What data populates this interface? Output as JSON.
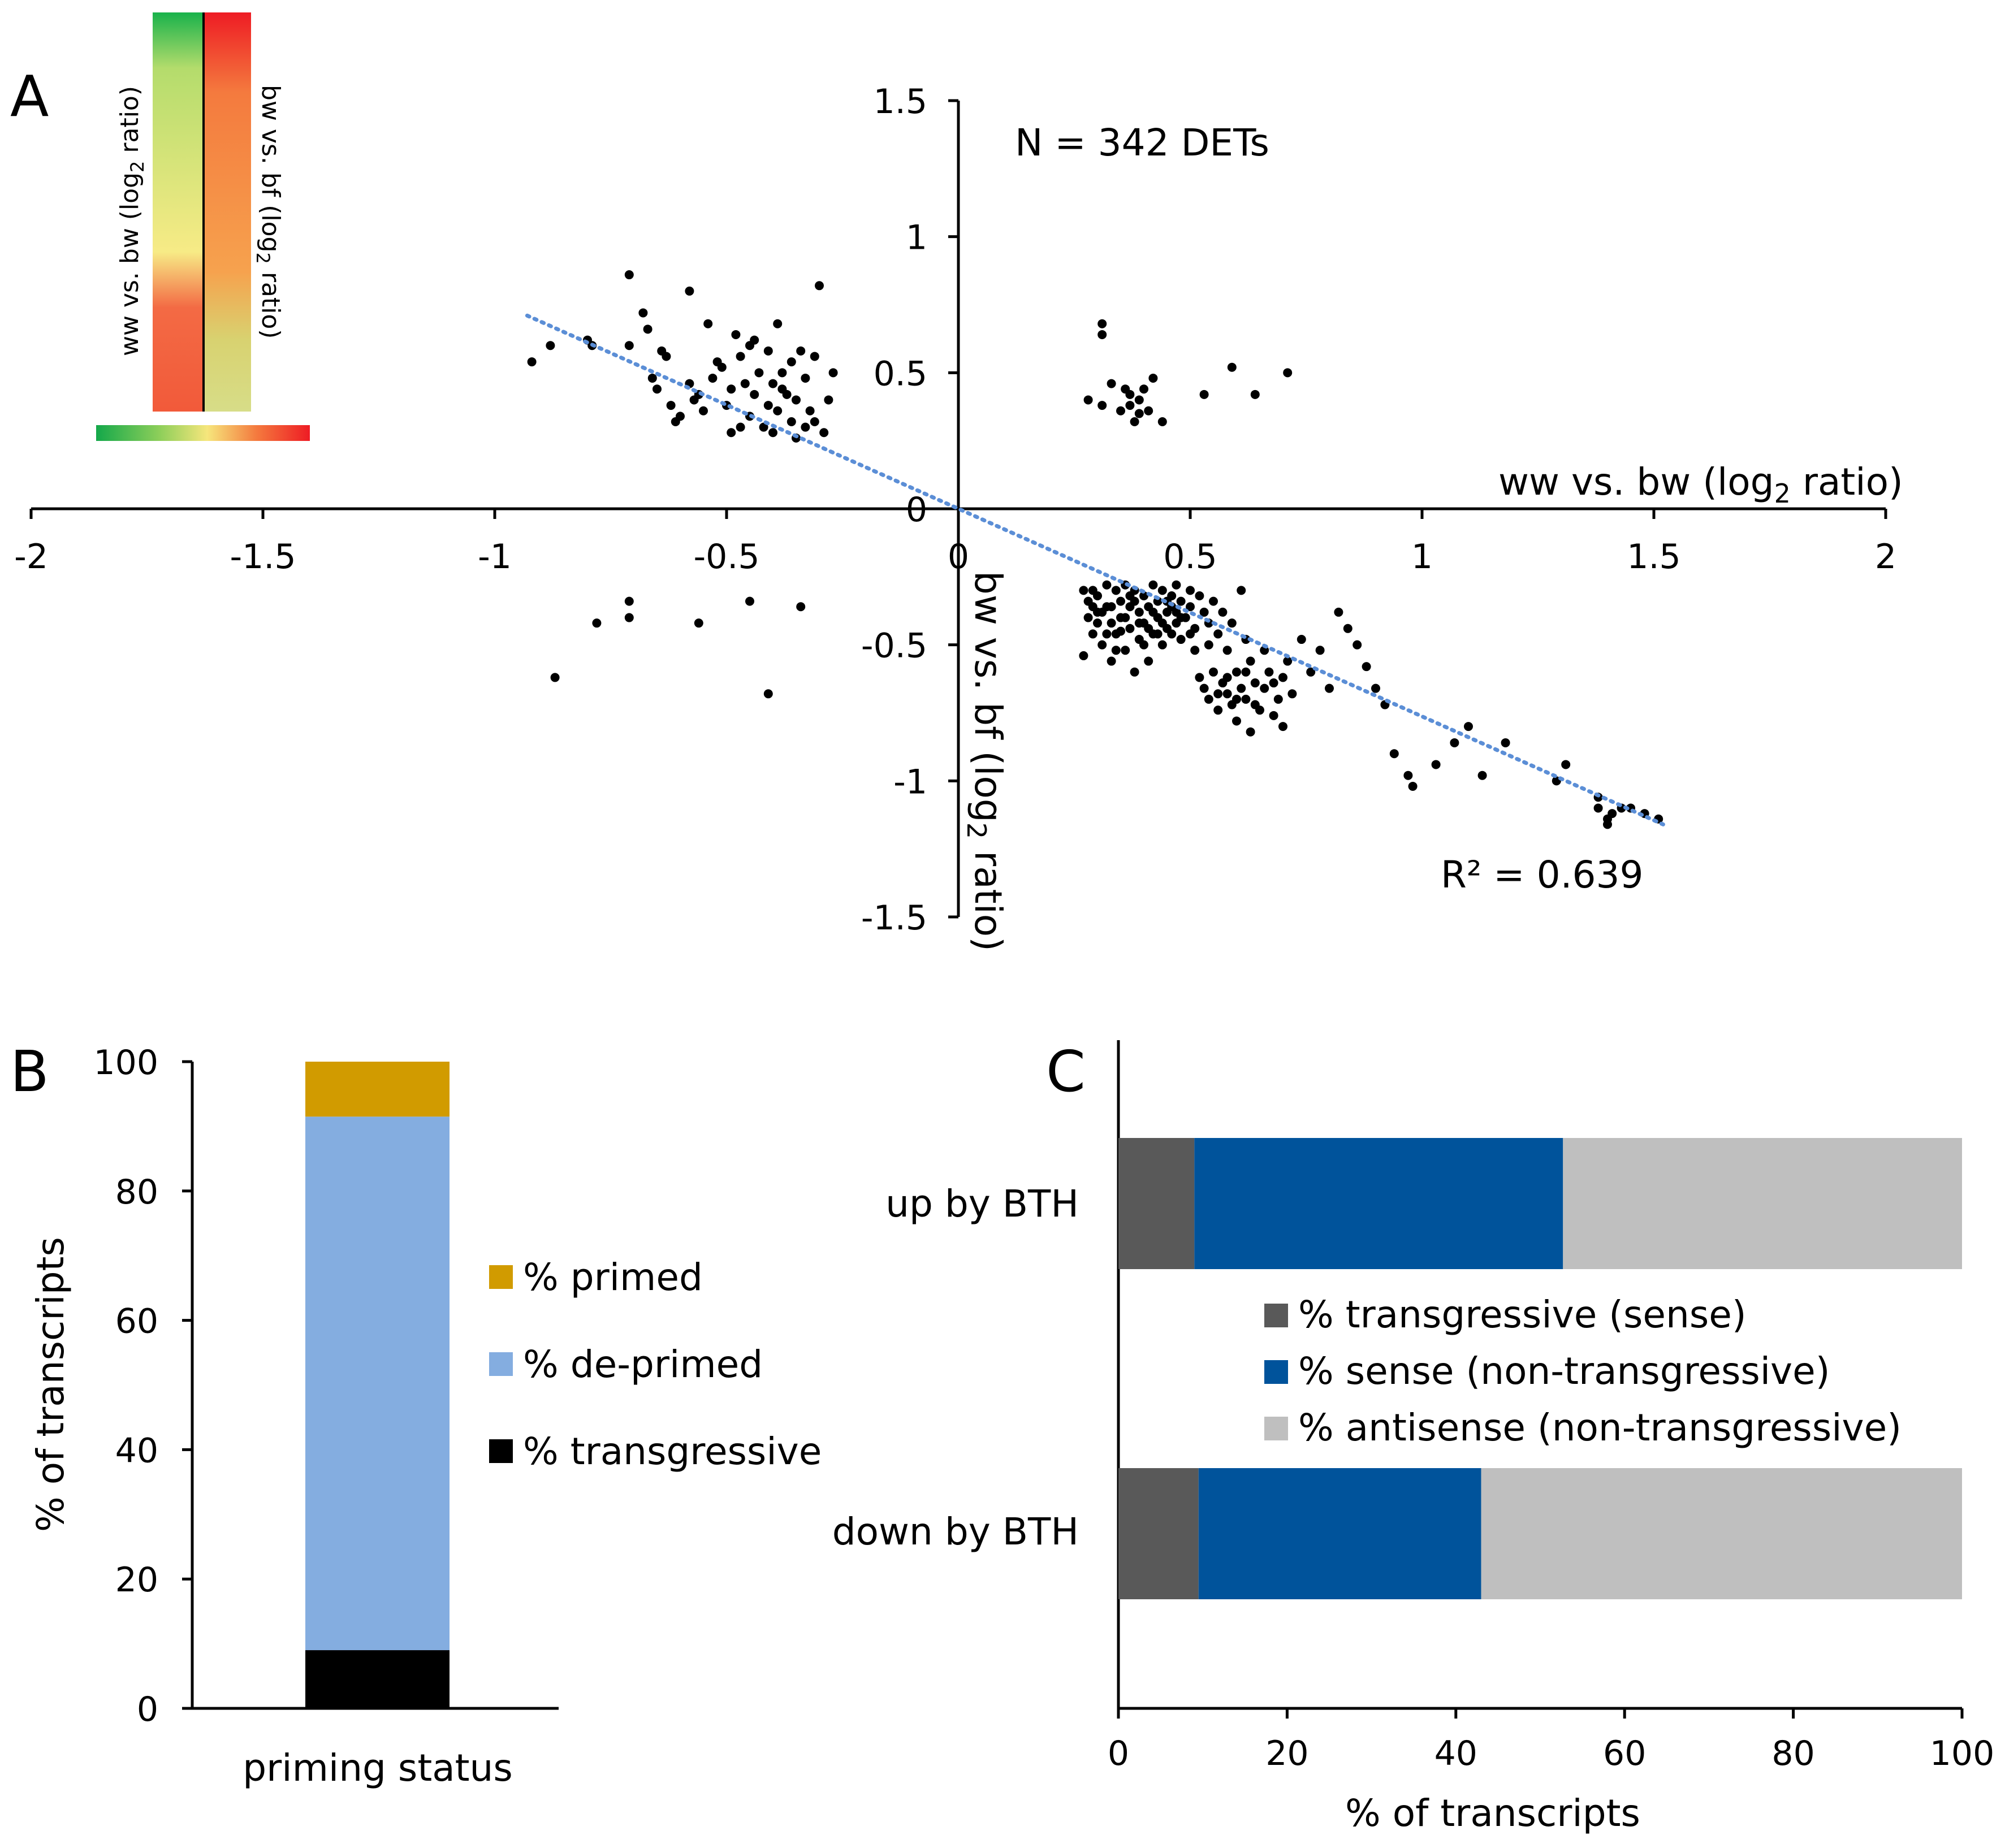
{
  "chart_data": [
    {
      "panel": "A",
      "type": "scatter",
      "panel_label": "A",
      "annotation_n": "N = 342 DETs",
      "annotation_r2": "R² = 0.639",
      "xlabel_pre": "ww vs. bw (log",
      "xlabel_sub": "2",
      "xlabel_post": " ratio)",
      "ylabel_pre": "bw vs. bf (log",
      "ylabel_sub": "2",
      "ylabel_post": " ratio)",
      "xlim": [
        -2,
        2
      ],
      "ylim": [
        -1.5,
        1.5
      ],
      "x_ticks": [
        {
          "v": -2,
          "label": "-2"
        },
        {
          "v": -1.5,
          "label": "-1.5"
        },
        {
          "v": -1,
          "label": "-1"
        },
        {
          "v": -0.5,
          "label": "-0.5"
        },
        {
          "v": 0,
          "label": "0"
        },
        {
          "v": 0.5,
          "label": "0.5"
        },
        {
          "v": 1,
          "label": "1"
        },
        {
          "v": 1.5,
          "label": "1.5"
        },
        {
          "v": 2,
          "label": "2"
        }
      ],
      "y_ticks": [
        {
          "v": 1.5,
          "label": "1.5"
        },
        {
          "v": 1,
          "label": "1"
        },
        {
          "v": 0.5,
          "label": "0.5"
        },
        {
          "v": 0,
          "label": "0"
        },
        {
          "v": -0.5,
          "label": "-0.5"
        },
        {
          "v": -1,
          "label": "-1"
        },
        {
          "v": -1.5,
          "label": "-1.5"
        }
      ],
      "trendline": {
        "x": [
          -0.93,
          1.52
        ],
        "y": [
          0.71,
          -1.16
        ],
        "color": "#5b8ed6"
      },
      "point_color": "#000000",
      "colorbar": {
        "left_label_pre": "ww vs. bw (log",
        "left_label_sub": "2",
        "left_label_post": " ratio)",
        "right_label_pre": "bw vs. bf (log",
        "right_label_sub": "2",
        "right_label_post": " ratio)",
        "colors": [
          "#19b24b",
          "#c3df6a",
          "#f6e884",
          "#f25a3a",
          "#ee1c24"
        ]
      },
      "points": [
        [
          -0.92,
          0.54
        ],
        [
          -0.88,
          0.6
        ],
        [
          -0.8,
          0.62
        ],
        [
          -0.79,
          0.6
        ],
        [
          -0.71,
          0.86
        ],
        [
          -0.71,
          0.6
        ],
        [
          -0.68,
          0.72
        ],
        [
          -0.67,
          0.66
        ],
        [
          -0.66,
          0.48
        ],
        [
          -0.65,
          0.44
        ],
        [
          -0.64,
          0.58
        ],
        [
          -0.63,
          0.56
        ],
        [
          -0.62,
          0.38
        ],
        [
          -0.6,
          0.34
        ],
        [
          -0.58,
          0.46
        ],
        [
          -0.58,
          0.8
        ],
        [
          -0.56,
          0.42
        ],
        [
          -0.55,
          0.36
        ],
        [
          -0.54,
          0.68
        ],
        [
          -0.53,
          0.48
        ],
        [
          -0.51,
          0.52
        ],
        [
          -0.5,
          0.38
        ],
        [
          -0.49,
          0.44
        ],
        [
          -0.49,
          0.28
        ],
        [
          -0.48,
          0.64
        ],
        [
          -0.47,
          0.56
        ],
        [
          -0.46,
          0.46
        ],
        [
          -0.45,
          0.34
        ],
        [
          -0.45,
          0.6
        ],
        [
          -0.44,
          0.42
        ],
        [
          -0.43,
          0.5
        ],
        [
          -0.42,
          0.3
        ],
        [
          -0.41,
          0.38
        ],
        [
          -0.41,
          0.58
        ],
        [
          -0.4,
          0.46
        ],
        [
          -0.39,
          0.36
        ],
        [
          -0.39,
          0.68
        ],
        [
          -0.38,
          0.5
        ],
        [
          -0.37,
          0.42
        ],
        [
          -0.36,
          0.32
        ],
        [
          -0.36,
          0.54
        ],
        [
          -0.35,
          0.4
        ],
        [
          -0.34,
          0.58
        ],
        [
          -0.33,
          0.3
        ],
        [
          -0.33,
          0.48
        ],
        [
          -0.32,
          0.36
        ],
        [
          -0.31,
          0.56
        ],
        [
          -0.3,
          0.82
        ],
        [
          -0.29,
          0.28
        ],
        [
          -0.28,
          0.4
        ],
        [
          -0.27,
          0.5
        ],
        [
          -0.44,
          0.62
        ],
        [
          -0.52,
          0.54
        ],
        [
          -0.57,
          0.4
        ],
        [
          -0.61,
          0.32
        ],
        [
          -0.4,
          0.28
        ],
        [
          -0.35,
          0.26
        ],
        [
          -0.47,
          0.3
        ],
        [
          -0.38,
          0.44
        ],
        [
          -0.31,
          0.32
        ],
        [
          -0.87,
          -0.62
        ],
        [
          -0.78,
          -0.42
        ],
        [
          -0.71,
          -0.34
        ],
        [
          -0.71,
          -0.4
        ],
        [
          -0.56,
          -0.42
        ],
        [
          -0.45,
          -0.34
        ],
        [
          -0.41,
          -0.68
        ],
        [
          -0.34,
          -0.36
        ],
        [
          0.31,
          0.68
        ],
        [
          0.31,
          0.64
        ],
        [
          0.33,
          0.46
        ],
        [
          0.28,
          0.4
        ],
        [
          0.35,
          0.36
        ],
        [
          0.36,
          0.44
        ],
        [
          0.37,
          0.42
        ],
        [
          0.38,
          0.32
        ],
        [
          0.39,
          0.4
        ],
        [
          0.4,
          0.44
        ],
        [
          0.41,
          0.36
        ],
        [
          0.42,
          0.48
        ],
        [
          0.44,
          0.32
        ],
        [
          0.53,
          0.42
        ],
        [
          0.59,
          0.52
        ],
        [
          0.64,
          0.42
        ],
        [
          0.71,
          0.5
        ],
        [
          0.31,
          0.38
        ],
        [
          0.37,
          0.38
        ],
        [
          0.39,
          0.35
        ],
        [
          0.27,
          -0.3
        ],
        [
          0.27,
          -0.54
        ],
        [
          0.28,
          -0.34
        ],
        [
          0.28,
          -0.4
        ],
        [
          0.29,
          -0.3
        ],
        [
          0.29,
          -0.46
        ],
        [
          0.3,
          -0.32
        ],
        [
          0.3,
          -0.38
        ],
        [
          0.31,
          -0.5
        ],
        [
          0.32,
          -0.28
        ],
        [
          0.32,
          -0.36
        ],
        [
          0.33,
          -0.42
        ],
        [
          0.33,
          -0.56
        ],
        [
          0.34,
          -0.3
        ],
        [
          0.34,
          -0.46
        ],
        [
          0.35,
          -0.34
        ],
        [
          0.35,
          -0.4
        ],
        [
          0.36,
          -0.52
        ],
        [
          0.36,
          -0.28
        ],
        [
          0.37,
          -0.36
        ],
        [
          0.37,
          -0.44
        ],
        [
          0.38,
          -0.3
        ],
        [
          0.38,
          -0.6
        ],
        [
          0.39,
          -0.38
        ],
        [
          0.39,
          -0.48
        ],
        [
          0.4,
          -0.32
        ],
        [
          0.4,
          -0.42
        ],
        [
          0.41,
          -0.36
        ],
        [
          0.41,
          -0.56
        ],
        [
          0.42,
          -0.28
        ],
        [
          0.42,
          -0.46
        ],
        [
          0.43,
          -0.34
        ],
        [
          0.43,
          -0.4
        ],
        [
          0.44,
          -0.3
        ],
        [
          0.44,
          -0.5
        ],
        [
          0.45,
          -0.38
        ],
        [
          0.45,
          -0.44
        ],
        [
          0.46,
          -0.32
        ],
        [
          0.46,
          -0.36
        ],
        [
          0.47,
          -0.42
        ],
        [
          0.47,
          -0.28
        ],
        [
          0.48,
          -0.34
        ],
        [
          0.48,
          -0.48
        ],
        [
          0.49,
          -0.4
        ],
        [
          0.5,
          -0.3
        ],
        [
          0.5,
          -0.36
        ],
        [
          0.51,
          -0.44
        ],
        [
          0.51,
          -0.52
        ],
        [
          0.52,
          -0.32
        ],
        [
          0.52,
          -0.62
        ],
        [
          0.53,
          -0.38
        ],
        [
          0.53,
          -0.66
        ],
        [
          0.54,
          -0.42
        ],
        [
          0.54,
          -0.7
        ],
        [
          0.55,
          -0.34
        ],
        [
          0.55,
          -0.6
        ],
        [
          0.56,
          -0.46
        ],
        [
          0.56,
          -0.74
        ],
        [
          0.57,
          -0.64
        ],
        [
          0.57,
          -0.38
        ],
        [
          0.58,
          -0.68
        ],
        [
          0.58,
          -0.52
        ],
        [
          0.59,
          -0.72
        ],
        [
          0.59,
          -0.42
        ],
        [
          0.6,
          -0.6
        ],
        [
          0.6,
          -0.78
        ],
        [
          0.61,
          -0.3
        ],
        [
          0.61,
          -0.66
        ],
        [
          0.62,
          -0.48
        ],
        [
          0.62,
          -0.7
        ],
        [
          0.63,
          -0.56
        ],
        [
          0.63,
          -0.82
        ],
        [
          0.64,
          -0.64
        ],
        [
          0.65,
          -0.74
        ],
        [
          0.66,
          -0.52
        ],
        [
          0.66,
          -0.66
        ],
        [
          0.67,
          -0.6
        ],
        [
          0.68,
          -0.76
        ],
        [
          0.69,
          -0.7
        ],
        [
          0.7,
          -0.62
        ],
        [
          0.7,
          -0.8
        ],
        [
          0.71,
          -0.56
        ],
        [
          0.72,
          -0.68
        ],
        [
          0.74,
          -0.48
        ],
        [
          0.76,
          -0.6
        ],
        [
          0.78,
          -0.52
        ],
        [
          0.8,
          -0.66
        ],
        [
          0.82,
          -0.38
        ],
        [
          0.84,
          -0.44
        ],
        [
          0.86,
          -0.5
        ],
        [
          0.88,
          -0.58
        ],
        [
          0.9,
          -0.66
        ],
        [
          0.92,
          -0.72
        ],
        [
          0.94,
          -0.9
        ],
        [
          0.97,
          -0.98
        ],
        [
          0.98,
          -1.02
        ],
        [
          1.03,
          -0.94
        ],
        [
          1.07,
          -0.86
        ],
        [
          1.1,
          -0.8
        ],
        [
          1.13,
          -0.98
        ],
        [
          1.18,
          -0.86
        ],
        [
          1.31,
          -0.94
        ],
        [
          1.29,
          -1.0
        ],
        [
          1.38,
          -1.06
        ],
        [
          1.38,
          -1.1
        ],
        [
          1.4,
          -1.14
        ],
        [
          1.41,
          -1.12
        ],
        [
          1.43,
          -1.1
        ],
        [
          1.45,
          -1.1
        ],
        [
          1.48,
          -1.12
        ],
        [
          1.51,
          -1.14
        ],
        [
          1.4,
          -1.16
        ],
        [
          0.3,
          -0.42
        ],
        [
          0.34,
          -0.52
        ],
        [
          0.36,
          -0.4
        ],
        [
          0.4,
          -0.5
        ],
        [
          0.44,
          -0.42
        ],
        [
          0.48,
          -0.4
        ],
        [
          0.32,
          -0.46
        ],
        [
          0.38,
          -0.34
        ],
        [
          0.42,
          -0.38
        ],
        [
          0.46,
          -0.46
        ],
        [
          0.5,
          -0.46
        ],
        [
          0.54,
          -0.5
        ],
        [
          0.58,
          -0.62
        ],
        [
          0.62,
          -0.6
        ],
        [
          0.64,
          -0.72
        ],
        [
          0.68,
          -0.64
        ],
        [
          0.6,
          -0.7
        ],
        [
          0.56,
          -0.68
        ],
        [
          0.35,
          -0.45
        ],
        [
          0.31,
          -0.38
        ],
        [
          0.43,
          -0.46
        ],
        [
          0.47,
          -0.38
        ],
        [
          0.39,
          -0.42
        ],
        [
          0.33,
          -0.36
        ],
        [
          0.37,
          -0.32
        ],
        [
          0.41,
          -0.44
        ],
        [
          0.45,
          -0.34
        ],
        [
          0.29,
          -0.36
        ]
      ]
    },
    {
      "panel": "B",
      "type": "bar",
      "stacked": true,
      "panel_label": "B",
      "categories": [
        "priming status"
      ],
      "ylabel": "% of transcripts",
      "ylim": [
        0,
        100
      ],
      "y_ticks": [
        {
          "v": 100,
          "label": "100"
        },
        {
          "v": 80,
          "label": "80"
        },
        {
          "v": 60,
          "label": "60"
        },
        {
          "v": 40,
          "label": "40"
        },
        {
          "v": 20,
          "label": "20"
        },
        {
          "v": 0,
          "label": "0"
        }
      ],
      "series": [
        {
          "name": "% transgressive",
          "values": [
            9
          ],
          "color": "#000000"
        },
        {
          "name": "% de-primed",
          "values": [
            82.5
          ],
          "color": "#84ade0"
        },
        {
          "name": "% primed",
          "values": [
            8.5
          ],
          "color": "#d19b00"
        }
      ],
      "legend_order": [
        "% primed",
        "% de-primed",
        "% transgressive"
      ]
    },
    {
      "panel": "C",
      "type": "bar",
      "orientation": "horizontal",
      "stacked": true,
      "panel_label": "C",
      "categories": [
        "up by BTH",
        "down by BTH"
      ],
      "xlabel": "% of transcripts",
      "xlim": [
        0,
        100
      ],
      "x_ticks": [
        {
          "v": 0,
          "label": "0"
        },
        {
          "v": 20,
          "label": "20"
        },
        {
          "v": 40,
          "label": "40"
        },
        {
          "v": 60,
          "label": "60"
        },
        {
          "v": 80,
          "label": "80"
        },
        {
          "v": 100,
          "label": "100"
        }
      ],
      "series": [
        {
          "name": "% transgressive (sense)",
          "values": [
            9,
            9.5
          ],
          "color": "#595959"
        },
        {
          "name": "% sense (non-transgressive)",
          "values": [
            43.7,
            33.5
          ],
          "color": "#00539b"
        },
        {
          "name": "% antisense (non-transgressive)",
          "values": [
            47.3,
            57
          ],
          "color": "#bfbfbf"
        }
      ]
    }
  ]
}
